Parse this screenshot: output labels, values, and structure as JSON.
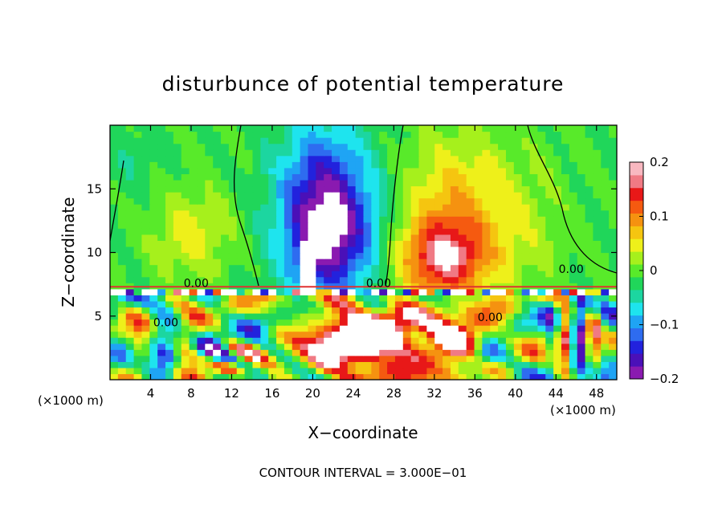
{
  "chart_data": {
    "type": "heatmap",
    "title": "disturbunce of potential temperature",
    "xlabel": "X−coordinate",
    "ylabel": "Z−coordinate",
    "x_unit_left": "(×1000 m)",
    "x_unit_right": "(×1000 m)",
    "x_ticks": [
      4,
      8,
      12,
      16,
      20,
      24,
      28,
      32,
      36,
      40,
      44,
      48
    ],
    "y_ticks": [
      5,
      10,
      15
    ],
    "xlim": [
      0,
      50
    ],
    "ylim": [
      0,
      20
    ],
    "colorbar": {
      "range": [
        -0.2,
        0.2
      ],
      "ticks": [
        {
          "value": 0.2,
          "label": "0.2"
        },
        {
          "value": 0.1,
          "label": "0.1"
        },
        {
          "value": 0.0,
          "label": "0"
        },
        {
          "value": -0.1,
          "label": "−0.1"
        },
        {
          "value": -0.2,
          "label": "−0.2"
        }
      ],
      "colors": [
        "#8a1ab0",
        "#4a10b8",
        "#2222dd",
        "#2e6cf0",
        "#1fa4f4",
        "#1ee4ee",
        "#1cd6a0",
        "#20d65a",
        "#58ea2a",
        "#a6f01c",
        "#eef01a",
        "#f5c510",
        "#f59210",
        "#f55a10",
        "#e81818",
        "#f07a84",
        "#f8b8c0"
      ],
      "stops": [
        -0.2,
        -0.175,
        -0.15,
        -0.125,
        -0.1,
        -0.075,
        -0.05,
        -0.025,
        0.0,
        0.025,
        0.05,
        0.075,
        0.1,
        0.125,
        0.15,
        0.175,
        0.2
      ]
    },
    "contour_labels": [
      {
        "x": 8.5,
        "z": 7.3,
        "text": "0.00"
      },
      {
        "x": 26.5,
        "z": 7.3,
        "text": "0.00"
      },
      {
        "x": 45.5,
        "z": 8.4,
        "text": "0.00"
      },
      {
        "x": 5.5,
        "z": 4.2,
        "text": "0.00"
      },
      {
        "x": 37.5,
        "z": 4.6,
        "text": "0.00"
      }
    ],
    "contour_interval_label": "CONTOUR INTERVAL = 3.000E−01"
  }
}
